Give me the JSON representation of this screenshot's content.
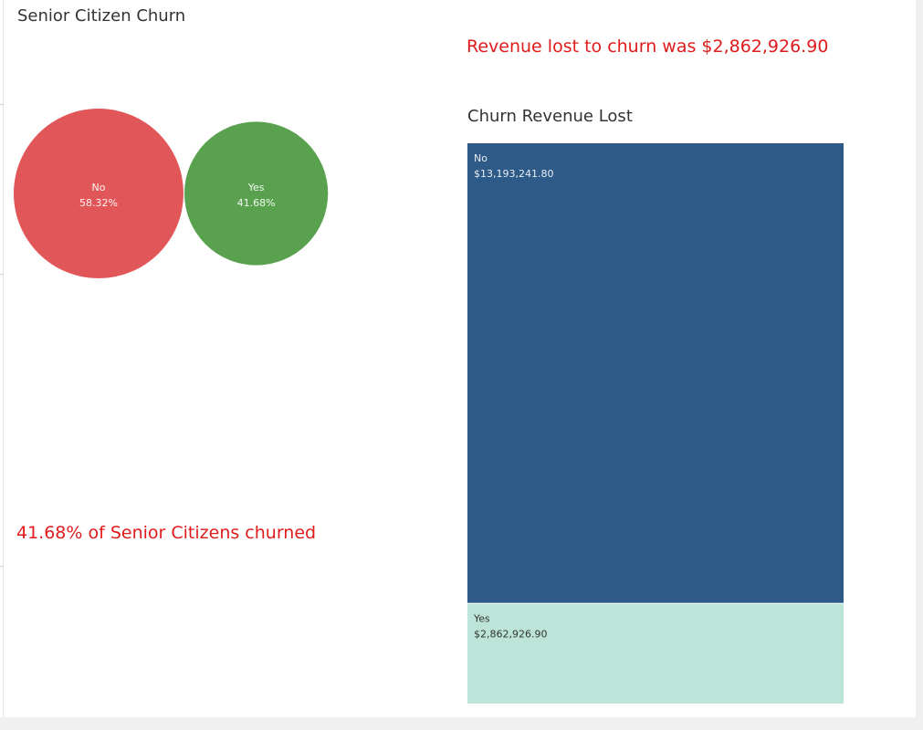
{
  "left_panel": {
    "title": "Senior Citizen Churn",
    "summary": "41.68% of Senior Citizens churned"
  },
  "right_panel": {
    "summary": "Revenue lost to churn was $2,862,926.90",
    "title": "Churn Revenue Lost"
  },
  "chart_data": [
    {
      "type": "bubble",
      "title": "Senior Citizen Churn",
      "series": [
        {
          "category": "No",
          "value_label": "58.32%",
          "value": 58.32,
          "color": "#e15759"
        },
        {
          "category": "Yes",
          "value_label": "41.68%",
          "value": 41.68,
          "color": "#59a14f"
        }
      ]
    },
    {
      "type": "treemap",
      "title": "Churn Revenue Lost",
      "series": [
        {
          "category": "No",
          "value_label": "$13,193,241.80",
          "value": 13193241.8,
          "color": "#2e5a87",
          "label_color": "#e8eef5"
        },
        {
          "category": "Yes",
          "value_label": "$2,862,926.90",
          "value": 2862926.9,
          "color": "#bce4d8",
          "label_color": "#333333"
        }
      ]
    }
  ]
}
